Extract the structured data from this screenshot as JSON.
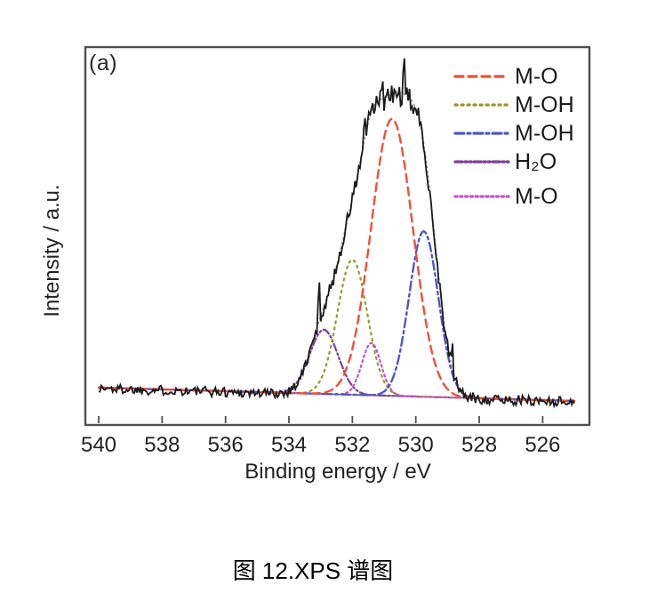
{
  "figure": {
    "panel_label": "(a)",
    "caption": "图 12.XPS 谱图"
  },
  "chart_data": {
    "type": "line",
    "title": "",
    "xlabel": "Binding energy / eV",
    "ylabel": "Intensity / a.u.",
    "x_axis": {
      "ticks": [
        "540",
        "538",
        "536",
        "534",
        "532",
        "530",
        "528",
        "526"
      ],
      "left_eV": 540.45,
      "right_eV": 524.55,
      "reversed": true
    },
    "y_axis": {
      "ticks": [],
      "units": "a.u."
    },
    "baseline": {
      "color": "#4a4a4a",
      "start_eV": 540.0,
      "end_eV": 525.0,
      "slope_note": "nearly flat background, slightly decreasing toward low binding energy"
    },
    "envelope": {
      "color": "#9b9b9b",
      "dash": "2.5 3"
    },
    "experimental": {
      "name": "raw XPS signal",
      "color": "#1b1b1b",
      "start_eV": 540.0,
      "end_eV": 525.0,
      "noise_base_amp": 0.015,
      "noise_peak_amp": 0.021,
      "noise_peak_center_eV": 530.7,
      "noise_peak_width_eV": 1.15,
      "max_value": 1.0,
      "spikes": [
        {
          "eV": 530.35,
          "v": 1.0
        },
        {
          "eV": 531.05,
          "v": 0.93
        },
        {
          "eV": 531.6,
          "v": 0.82
        },
        {
          "eV": 533.05,
          "v": 0.33
        },
        {
          "eV": 528.85,
          "v": 0.16
        }
      ]
    },
    "peaks": [
      {
        "label": "M-O",
        "center_eV": 530.75,
        "height": 0.82,
        "sigma_eV": 0.66,
        "color": "#ee5138",
        "dash": "9 6",
        "width": 2.4
      },
      {
        "label": "M-OH",
        "center_eV": 532.0,
        "height": 0.4,
        "sigma_eV": 0.47,
        "color": "#98982f",
        "dash": "2.2 4.8",
        "width": 2.2
      },
      {
        "label": "M-OH",
        "center_eV": 529.75,
        "height": 0.49,
        "sigma_eV": 0.46,
        "color": "#5156c5",
        "dash": "10 4 3 4",
        "width": 2.4
      },
      {
        "label": "H₂O",
        "center_eV": 532.9,
        "height": 0.19,
        "sigma_eV": 0.45,
        "color": "#7e3d96",
        "dash": "8 3 2 3 2 3",
        "width": 2.2
      },
      {
        "label": "M-O",
        "center_eV": 531.4,
        "height": 0.155,
        "sigma_eV": 0.3,
        "color": "#c653c6",
        "dash": "2.2 3.6",
        "width": 2.2
      }
    ],
    "legend": [
      {
        "label": "M-O",
        "peak_index": 0
      },
      {
        "label": "M-OH",
        "peak_index": 1
      },
      {
        "label": "M-OH",
        "peak_index": 2
      },
      {
        "label": "H₂O",
        "peak_index": 3
      },
      {
        "label": "M-O",
        "peak_index": 4
      }
    ]
  }
}
